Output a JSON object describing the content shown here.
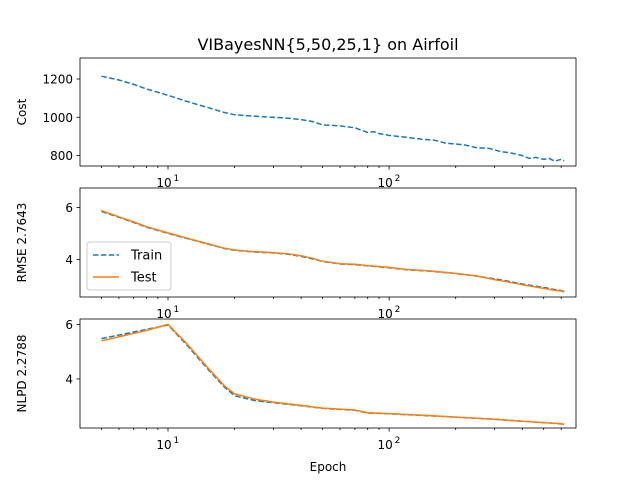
{
  "chart_data": {
    "type": "line",
    "title": "VIBayesNN{5,50,25,1} on Airfoil",
    "xlabel": "Epoch",
    "xscale": "log",
    "xlim": [
      4.0,
      700
    ],
    "x_ticks": [
      {
        "value": 10,
        "base": "10",
        "exp": "1"
      },
      {
        "value": 100,
        "base": "10",
        "exp": "2"
      }
    ],
    "colors": {
      "train": "#1f77b4",
      "test": "#ff7f0e"
    },
    "legend": {
      "panel": 1,
      "location": "center-left",
      "entries": [
        "Train",
        "Test"
      ]
    },
    "panels": [
      {
        "ylabel": "Cost",
        "ylim": [
          745,
          1310
        ],
        "yticks": [
          800,
          1000,
          1200
        ],
        "series": [
          {
            "name": "Train",
            "style": "dashed",
            "color": "#1f77b4",
            "points": [
              [
                5,
                1215
              ],
              [
                6,
                1195
              ],
              [
                7,
                1172
              ],
              [
                8,
                1148
              ],
              [
                10,
                1115
              ],
              [
                12,
                1085
              ],
              [
                15,
                1052
              ],
              [
                18,
                1025
              ],
              [
                20,
                1013
              ],
              [
                25,
                1005
              ],
              [
                30,
                1000
              ],
              [
                35,
                995
              ],
              [
                40,
                988
              ],
              [
                45,
                978
              ],
              [
                50,
                960
              ],
              [
                60,
                955
              ],
              [
                70,
                945
              ],
              [
                80,
                920
              ],
              [
                85,
                925
              ],
              [
                90,
                915
              ],
              [
                100,
                905
              ],
              [
                120,
                895
              ],
              [
                140,
                885
              ],
              [
                160,
                880
              ],
              [
                180,
                865
              ],
              [
                200,
                860
              ],
              [
                220,
                855
              ],
              [
                250,
                840
              ],
              [
                280,
                838
              ],
              [
                300,
                830
              ],
              [
                320,
                820
              ],
              [
                350,
                815
              ],
              [
                380,
                805
              ],
              [
                400,
                800
              ],
              [
                430,
                785
              ],
              [
                460,
                790
              ],
              [
                500,
                780
              ],
              [
                530,
                785
              ],
              [
                560,
                770
              ],
              [
                600,
                780
              ],
              [
                620,
                772
              ]
            ]
          }
        ]
      },
      {
        "ylabel": "RMSE 2.7643",
        "ylim": [
          2.55,
          6.75
        ],
        "yticks": [
          4,
          6
        ],
        "series": [
          {
            "name": "Train",
            "style": "dashed",
            "color": "#1f77b4",
            "points": [
              [
                5,
                5.85
              ],
              [
                6,
                5.62
              ],
              [
                7,
                5.42
              ],
              [
                8,
                5.24
              ],
              [
                10,
                5.0
              ],
              [
                12,
                4.82
              ],
              [
                15,
                4.6
              ],
              [
                18,
                4.42
              ],
              [
                20,
                4.35
              ],
              [
                25,
                4.28
              ],
              [
                30,
                4.25
              ],
              [
                35,
                4.2
              ],
              [
                40,
                4.12
              ],
              [
                45,
                4.02
              ],
              [
                50,
                3.92
              ],
              [
                60,
                3.82
              ],
              [
                70,
                3.8
              ],
              [
                80,
                3.75
              ],
              [
                100,
                3.68
              ],
              [
                120,
                3.6
              ],
              [
                150,
                3.55
              ],
              [
                200,
                3.45
              ],
              [
                250,
                3.35
              ],
              [
                300,
                3.25
              ],
              [
                350,
                3.15
              ],
              [
                400,
                3.05
              ],
              [
                450,
                2.98
              ],
              [
                500,
                2.92
              ],
              [
                550,
                2.85
              ],
              [
                600,
                2.8
              ],
              [
                620,
                2.76
              ]
            ]
          },
          {
            "name": "Test",
            "style": "solid",
            "color": "#ff7f0e",
            "points": [
              [
                5,
                5.88
              ],
              [
                6,
                5.64
              ],
              [
                7,
                5.44
              ],
              [
                8,
                5.26
              ],
              [
                10,
                5.02
              ],
              [
                12,
                4.83
              ],
              [
                15,
                4.61
              ],
              [
                18,
                4.43
              ],
              [
                20,
                4.36
              ],
              [
                25,
                4.29
              ],
              [
                30,
                4.26
              ],
              [
                35,
                4.21
              ],
              [
                40,
                4.14
              ],
              [
                45,
                4.04
              ],
              [
                50,
                3.93
              ],
              [
                60,
                3.83
              ],
              [
                70,
                3.81
              ],
              [
                80,
                3.76
              ],
              [
                100,
                3.69
              ],
              [
                120,
                3.61
              ],
              [
                150,
                3.56
              ],
              [
                200,
                3.46
              ],
              [
                250,
                3.36
              ],
              [
                300,
                3.22
              ],
              [
                350,
                3.12
              ],
              [
                400,
                3.02
              ],
              [
                450,
                2.95
              ],
              [
                500,
                2.88
              ],
              [
                550,
                2.82
              ],
              [
                600,
                2.78
              ],
              [
                620,
                2.74
              ]
            ]
          }
        ]
      },
      {
        "ylabel": "NLPD 2.2788",
        "ylim": [
          2.2,
          6.2
        ],
        "yticks": [
          4,
          6
        ],
        "series": [
          {
            "name": "Train",
            "style": "dashed",
            "color": "#1f77b4",
            "points": [
              [
                5,
                5.48
              ],
              [
                8,
                5.82
              ],
              [
                10,
                5.98
              ],
              [
                12,
                5.3
              ],
              [
                15,
                4.4
              ],
              [
                18,
                3.7
              ],
              [
                20,
                3.38
              ],
              [
                25,
                3.2
              ],
              [
                30,
                3.13
              ],
              [
                40,
                3.02
              ],
              [
                50,
                2.92
              ],
              [
                70,
                2.85
              ],
              [
                80,
                2.75
              ],
              [
                100,
                2.72
              ],
              [
                150,
                2.65
              ],
              [
                200,
                2.6
              ],
              [
                300,
                2.52
              ],
              [
                400,
                2.45
              ],
              [
                500,
                2.4
              ],
              [
                600,
                2.35
              ],
              [
                620,
                2.32
              ]
            ]
          },
          {
            "name": "Test",
            "style": "solid",
            "color": "#ff7f0e",
            "points": [
              [
                5,
                5.4
              ],
              [
                8,
                5.78
              ],
              [
                10,
                6.0
              ],
              [
                12,
                5.35
              ],
              [
                15,
                4.45
              ],
              [
                18,
                3.75
              ],
              [
                20,
                3.45
              ],
              [
                25,
                3.25
              ],
              [
                30,
                3.15
              ],
              [
                40,
                3.03
              ],
              [
                50,
                2.93
              ],
              [
                70,
                2.86
              ],
              [
                80,
                2.76
              ],
              [
                100,
                2.73
              ],
              [
                150,
                2.66
              ],
              [
                200,
                2.6
              ],
              [
                300,
                2.52
              ],
              [
                400,
                2.45
              ],
              [
                500,
                2.4
              ],
              [
                600,
                2.36
              ],
              [
                620,
                2.33
              ]
            ]
          }
        ]
      }
    ]
  }
}
